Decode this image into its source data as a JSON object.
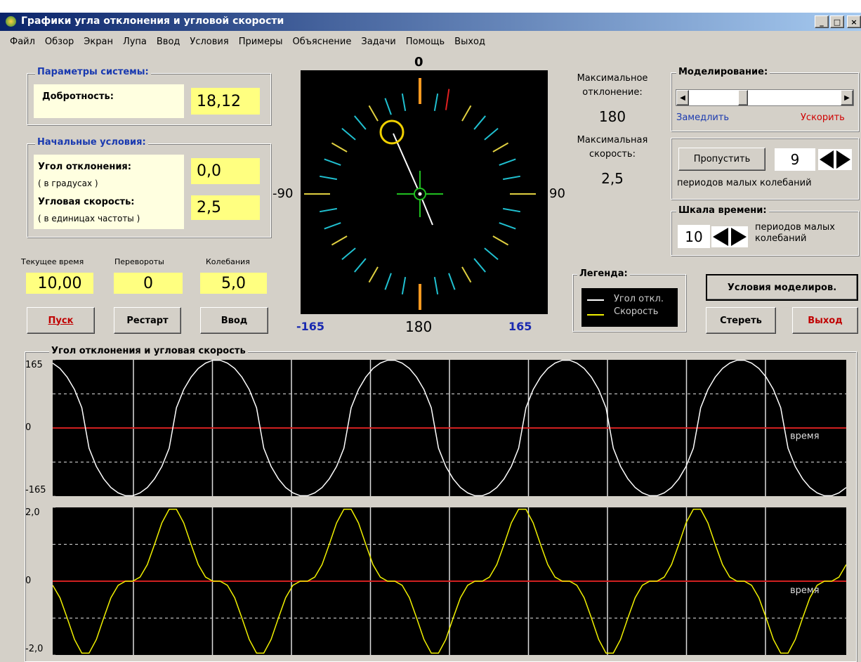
{
  "window_title": "Графики угла отклонения и угловой скорости",
  "menu": [
    "Файл",
    "Обзор",
    "Экран",
    "Лупа",
    "Ввод",
    "Условия",
    "Примеры",
    "Объяснение",
    "Задачи",
    "Помощь",
    "Выход"
  ],
  "system_params": {
    "title": "Параметры системы:",
    "label": "Добротность:",
    "value": "18,12"
  },
  "initial_conditions": {
    "title": "Начальные условия:",
    "angle_label": "Угол отклонения:",
    "angle_hint": "( в градусах )",
    "angle_value": "0,0",
    "speed_label": "Угловая скорость:",
    "speed_hint": "( в единицах частоты )",
    "speed_value": "2,5"
  },
  "counters": [
    {
      "label": "Текущее время",
      "value": "10,00"
    },
    {
      "label": "Перевороты",
      "value": "0"
    },
    {
      "label": "Колебания",
      "value": "5,0"
    }
  ],
  "buttons": [
    "Пуск",
    "Рестарт",
    "Ввод"
  ],
  "dial": {
    "top": "0",
    "left": "-90",
    "right": "90",
    "bottom": "180",
    "bottom_left": "-165",
    "bottom_right": "165"
  },
  "max": {
    "angle_label": "Максимальное отклонение:",
    "angle_value": "180",
    "speed_label": "Максимальная скорость:",
    "speed_value": "2,5"
  },
  "modeling": {
    "title": "Моделирование:",
    "slower": "Замедлить",
    "faster": "Ускорить"
  },
  "skip": {
    "button": "Пропустить",
    "value": "9",
    "caption": "периодов малых колебаний"
  },
  "timescale": {
    "title": "Шкала времени:",
    "value": "10",
    "caption": "периодов малых колебаний"
  },
  "legend": {
    "title": "Легенда:",
    "items": [
      "Угол откл.",
      "Скорость"
    ]
  },
  "right_buttons": [
    "Условия моделиров.",
    "Стереть",
    "Выход"
  ],
  "plots_title": "Угол отклонения и угловая скорость",
  "plots": [
    {
      "type": "line",
      "color": "#ffffff",
      "x_label": "время",
      "ylim": [
        -165,
        165
      ],
      "yticks": [
        165,
        0,
        -165
      ],
      "values": [
        157,
        144,
        123,
        93,
        49,
        -49,
        -93,
        -123,
        -144,
        -157,
        -164,
        -164,
        -157,
        -144,
        -123,
        -93,
        -49,
        49,
        93,
        123,
        144,
        157,
        164,
        164,
        157,
        144,
        123,
        93,
        49,
        -49,
        -93,
        -123,
        -144,
        -157,
        -164,
        -164,
        -157,
        -144,
        -123,
        -93,
        -49,
        49,
        93,
        123,
        144,
        157,
        164,
        164,
        157,
        144,
        123,
        93,
        49,
        -49,
        -93,
        -123,
        -144,
        -157,
        -164,
        -164,
        -157,
        -144,
        -123,
        -93,
        -49,
        49,
        93,
        123,
        144,
        157,
        164,
        164,
        157,
        144,
        123,
        93,
        49,
        -49,
        -93,
        -123,
        -144,
        -157,
        -164,
        -164,
        -157,
        -144,
        -123,
        -93,
        -49,
        49,
        93,
        123,
        144,
        157,
        164,
        164,
        157,
        144,
        123,
        93,
        49,
        -49,
        -93,
        -123,
        -144,
        -157,
        -164,
        -164,
        -157,
        -144
      ]
    },
    {
      "type": "line",
      "color": "#f0f000",
      "x_label": "время",
      "ylim": [
        -2,
        2
      ],
      "yticks": [
        {
          "value": 2,
          "label": "2,0"
        },
        0,
        {
          "value": -2,
          "label": "-2,0"
        }
      ],
      "values": [
        -0.11,
        -0.45,
        -1,
        -1.58,
        -1.95,
        -1.95,
        -1.58,
        -1,
        -0.45,
        -0.11,
        0,
        0,
        0.11,
        0.45,
        1,
        1.58,
        1.95,
        1.95,
        1.58,
        1,
        0.45,
        0.11,
        0,
        0,
        -0.11,
        -0.45,
        -1,
        -1.58,
        -1.95,
        -1.95,
        -1.58,
        -1,
        -0.45,
        -0.11,
        0,
        0,
        0.11,
        0.45,
        1,
        1.58,
        1.95,
        1.95,
        1.58,
        1,
        0.45,
        0.11,
        0,
        0,
        -0.11,
        -0.45,
        -1,
        -1.58,
        -1.95,
        -1.95,
        -1.58,
        -1,
        -0.45,
        -0.11,
        0,
        0,
        0.11,
        0.45,
        1,
        1.58,
        1.95,
        1.95,
        1.58,
        1,
        0.45,
        0.11,
        0,
        0,
        -0.11,
        -0.45,
        -1,
        -1.58,
        -1.95,
        -1.95,
        -1.58,
        -1,
        -0.45,
        -0.11,
        0,
        0,
        0.11,
        0.45,
        1,
        1.58,
        1.95,
        1.95,
        1.58,
        1,
        0.45,
        0.11,
        0,
        0,
        -0.11,
        -0.45,
        -1,
        -1.58,
        -1.95,
        -1.95,
        -1.58,
        -1,
        -0.45,
        -0.11,
        0,
        0,
        0.11,
        0.45
      ]
    }
  ]
}
